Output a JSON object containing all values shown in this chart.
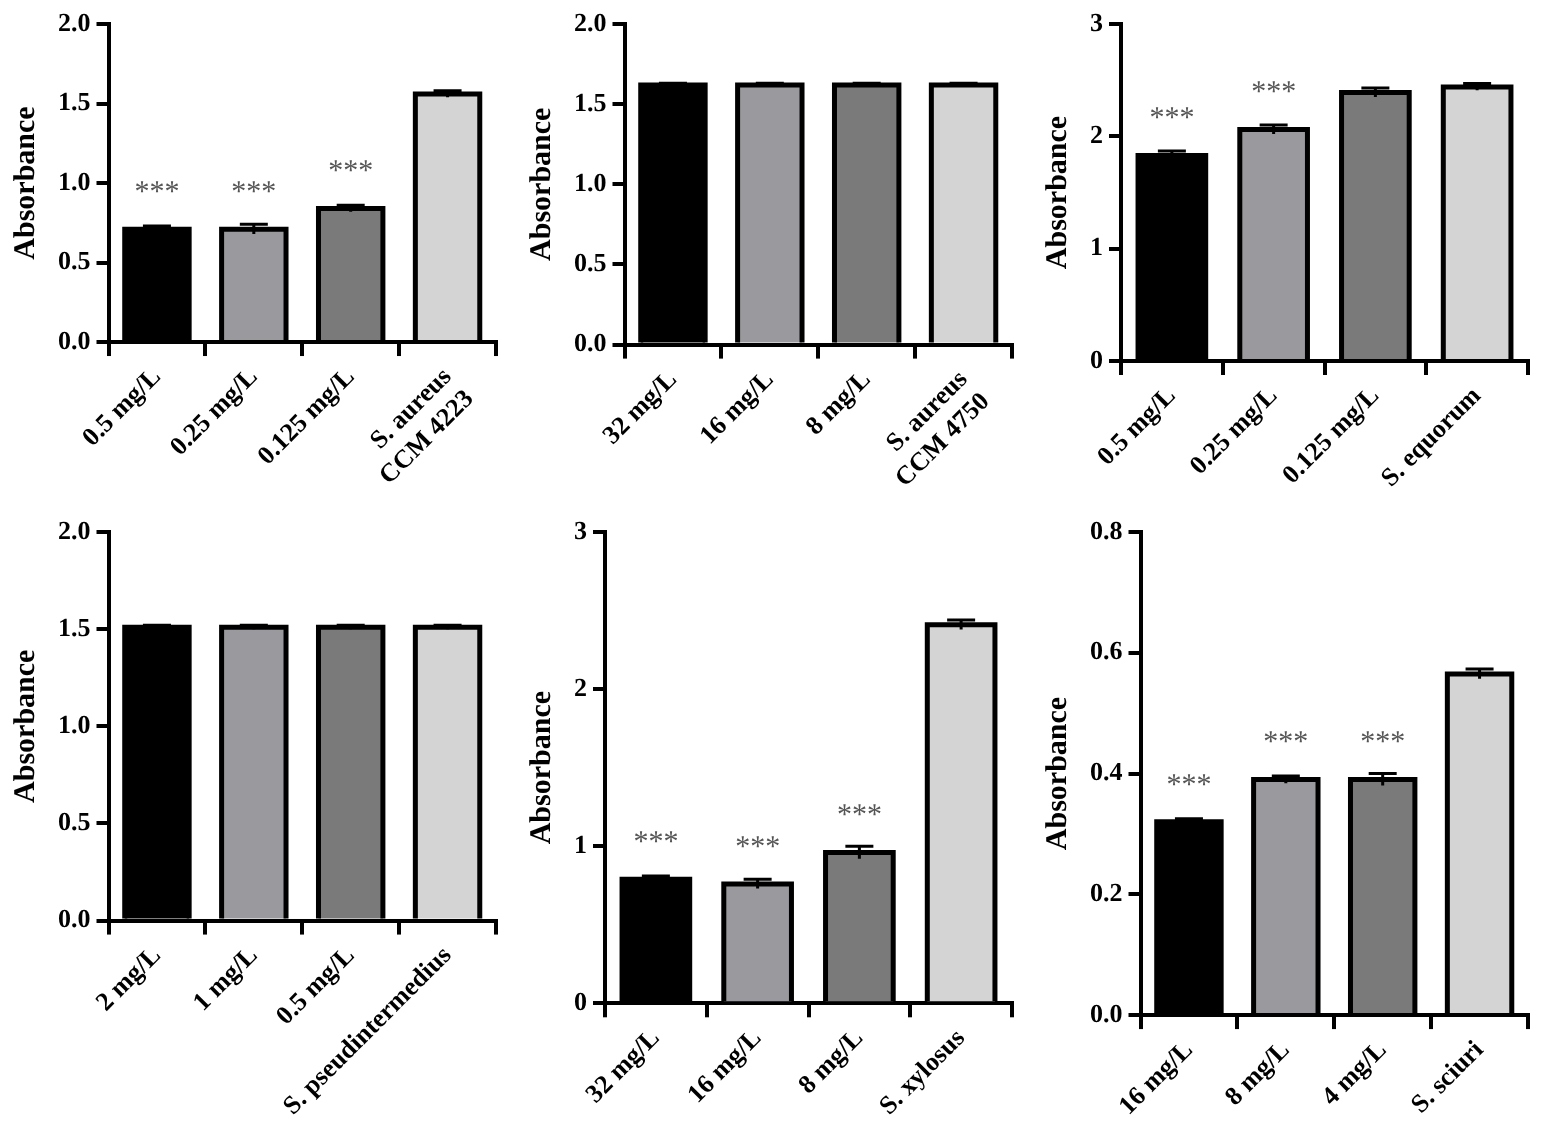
{
  "chart_data": [
    {
      "type": "bar",
      "ylabel": "Absorbance",
      "categories": [
        "0.5 mg/L",
        "0.25 mg/L",
        "0.125 mg/L",
        "S. aureus\nCCM 4223"
      ],
      "values": [
        0.71,
        0.71,
        0.84,
        1.56
      ],
      "errors": [
        0.02,
        0.03,
        0.02,
        0.02
      ],
      "colors": [
        "#000000",
        "#9a9a9e",
        "#7a7a7a",
        "#d4d4d4"
      ],
      "ylim": [
        0,
        2
      ],
      "yticks": [
        {
          "value": 0,
          "label": "0.0"
        },
        {
          "value": 0.5,
          "label": "0.5"
        },
        {
          "value": 1,
          "label": "1.0"
        },
        {
          "value": 1.5,
          "label": "1.5"
        },
        {
          "value": 2,
          "label": "2.0"
        }
      ],
      "grid": false,
      "legend": false,
      "annotations": [
        {
          "text": "***",
          "x": "0.5 mg/L",
          "y": 0.71
        },
        {
          "text": "***",
          "x": "0.25 mg/L",
          "y": 0.71
        },
        {
          "text": "***",
          "x": "0.125 mg/L",
          "y": 0.84
        }
      ]
    },
    {
      "type": "bar",
      "ylabel": "Absorbance",
      "categories": [
        "32 mg/L",
        "16 mg/L",
        "8 mg/L",
        "S. aureus\nCCM 4750"
      ],
      "values": [
        1.62,
        1.62,
        1.62,
        1.62
      ],
      "errors": [
        0.01,
        0.01,
        0.01,
        0.01
      ],
      "colors": [
        "#000000",
        "#9a9a9e",
        "#7a7a7a",
        "#d4d4d4"
      ],
      "ylim": [
        0,
        2
      ],
      "yticks": [
        {
          "value": 0,
          "label": "0.0"
        },
        {
          "value": 0.5,
          "label": "0.5"
        },
        {
          "value": 1,
          "label": "1.0"
        },
        {
          "value": 1.5,
          "label": "1.5"
        },
        {
          "value": 2,
          "label": "2.0"
        }
      ],
      "grid": false,
      "legend": false
    },
    {
      "type": "bar",
      "ylabel": "Absorbance",
      "categories": [
        "0.5 mg/L",
        "0.25 mg/L",
        "0.125 mg/L",
        "S. equorum"
      ],
      "values": [
        1.83,
        2.06,
        2.39,
        2.44
      ],
      "errors": [
        0.04,
        0.04,
        0.04,
        0.03
      ],
      "colors": [
        "#000000",
        "#9a9a9e",
        "#7a7a7a",
        "#d4d4d4"
      ],
      "ylim": [
        0,
        3
      ],
      "yticks": [
        0,
        1,
        2,
        3
      ],
      "grid": false,
      "legend": false,
      "annotations": [
        {
          "text": "***",
          "x": "0.5 mg/L",
          "y": 1.83
        },
        {
          "text": "***",
          "x": "0.25 mg/L",
          "y": 2.06
        }
      ]
    },
    {
      "type": "bar",
      "ylabel": "Absorbance",
      "categories": [
        "2 mg/L",
        "1 mg/L",
        "0.5 mg/L",
        "S. pseudintermedius"
      ],
      "values": [
        1.51,
        1.51,
        1.51,
        1.51
      ],
      "errors": [
        0.01,
        0.01,
        0.01,
        0.01
      ],
      "colors": [
        "#000000",
        "#9a9a9e",
        "#7a7a7a",
        "#d4d4d4"
      ],
      "ylim": [
        0,
        2
      ],
      "yticks": [
        {
          "value": 0,
          "label": "0.0"
        },
        {
          "value": 0.5,
          "label": "0.5"
        },
        {
          "value": 1,
          "label": "1.0"
        },
        {
          "value": 1.5,
          "label": "1.5"
        },
        {
          "value": 2,
          "label": "2.0"
        }
      ],
      "grid": false,
      "legend": false
    },
    {
      "type": "bar",
      "ylabel": "Absorbance",
      "categories": [
        "32 mg/L",
        "16 mg/L",
        "8 mg/L",
        "S. xylosus"
      ],
      "values": [
        0.79,
        0.76,
        0.96,
        2.41
      ],
      "errors": [
        0.02,
        0.03,
        0.04,
        0.03
      ],
      "colors": [
        "#000000",
        "#9a9a9e",
        "#7a7a7a",
        "#d4d4d4"
      ],
      "ylim": [
        0,
        3
      ],
      "yticks": [
        0,
        1,
        2,
        3
      ],
      "grid": false,
      "legend": false,
      "annotations": [
        {
          "text": "***",
          "x": "32 mg/L",
          "y": 0.79
        },
        {
          "text": "***",
          "x": "16 mg/L",
          "y": 0.76
        },
        {
          "text": "***",
          "x": "8 mg/L",
          "y": 0.96
        }
      ]
    },
    {
      "type": "bar",
      "ylabel": "Absorbance",
      "categories": [
        "16 mg/L",
        "8 mg/L",
        "4 mg/L",
        "S. sciuri"
      ],
      "values": [
        0.32,
        0.39,
        0.39,
        0.565
      ],
      "errors": [
        0.005,
        0.006,
        0.01,
        0.008
      ],
      "colors": [
        "#000000",
        "#9a9a9e",
        "#7a7a7a",
        "#d4d4d4"
      ],
      "ylim": [
        0,
        0.8
      ],
      "yticks": [
        {
          "value": 0,
          "label": "0.0"
        },
        {
          "value": 0.2,
          "label": "0.2"
        },
        {
          "value": 0.4,
          "label": "0.4"
        },
        {
          "value": 0.6,
          "label": "0.6"
        },
        {
          "value": 0.8,
          "label": "0.8"
        }
      ],
      "grid": false,
      "legend": false,
      "annotations": [
        {
          "text": "***",
          "x": "16 mg/L",
          "y": 0.32
        },
        {
          "text": "***",
          "x": "8 mg/L",
          "y": 0.39
        },
        {
          "text": "***",
          "x": "4 mg/L",
          "y": 0.39
        }
      ]
    }
  ]
}
